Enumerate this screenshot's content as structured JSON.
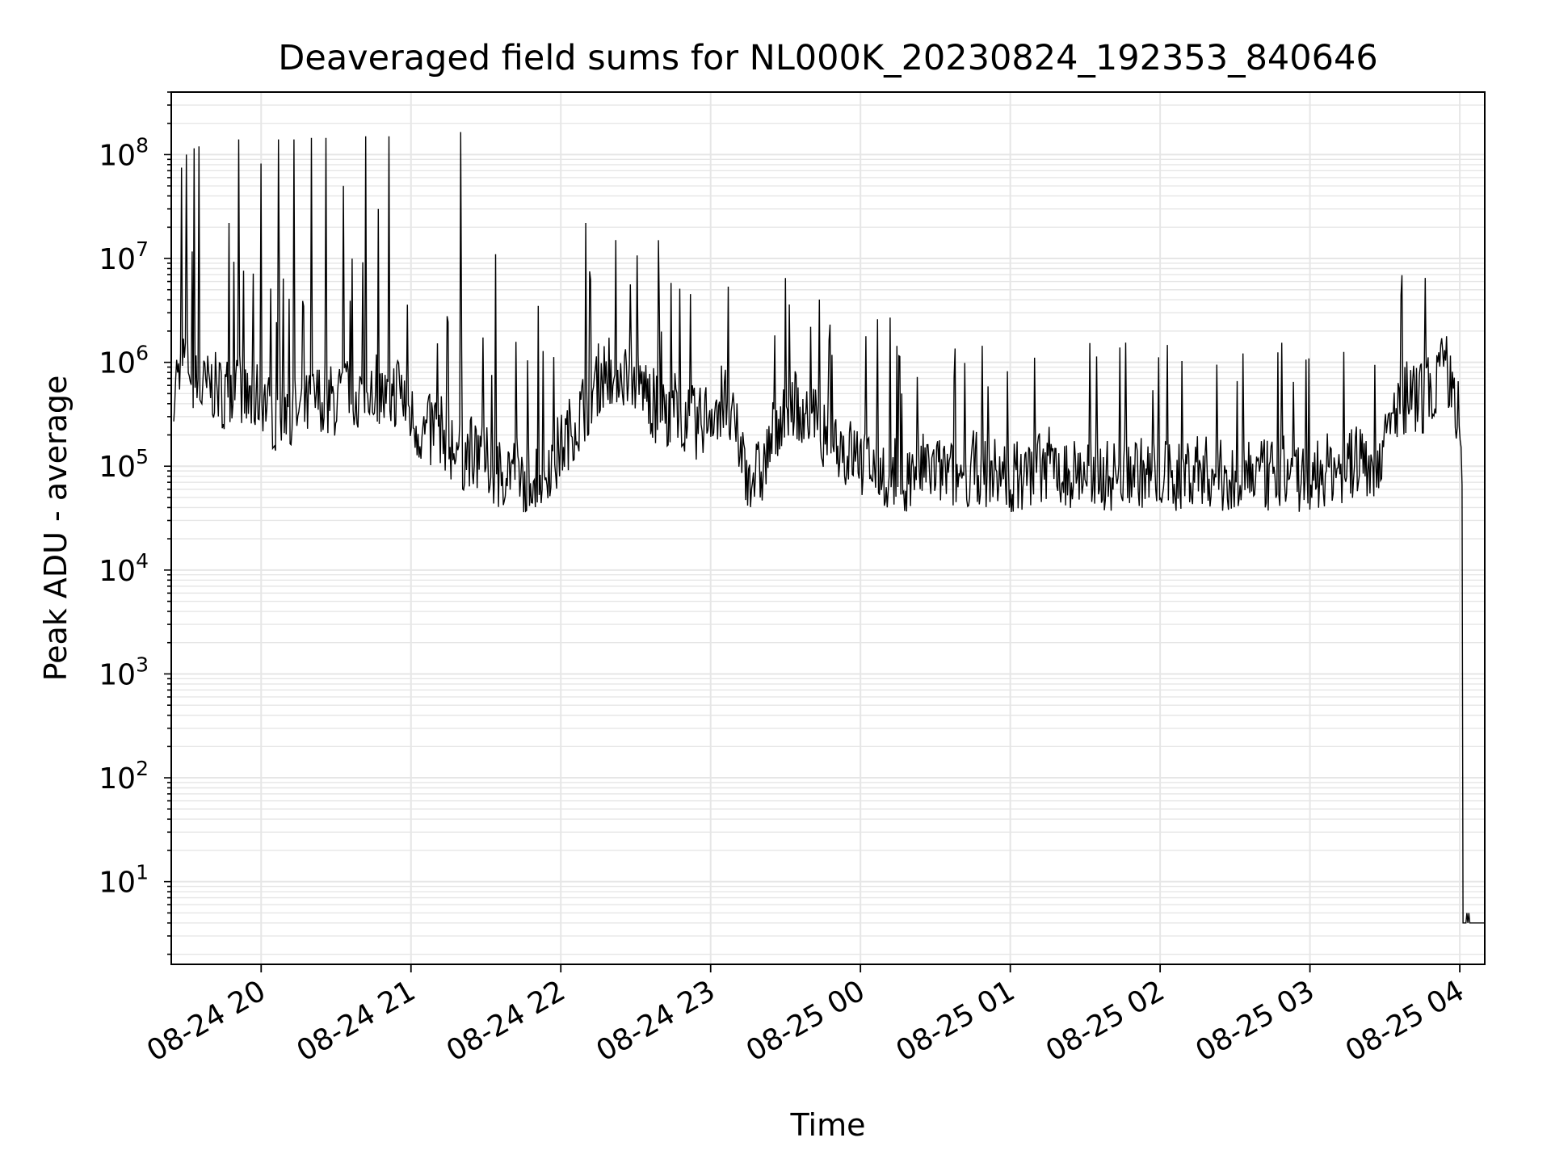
{
  "chart_data": {
    "type": "line",
    "title": "Deaveraged field sums for NL000K_20230824_192353_840646",
    "xlabel": "Time",
    "ylabel": "Peak ADU - average",
    "yscale": "log",
    "ylim": [
      1.6,
      400000000
    ],
    "xlim": [
      "2023-08-24 19:24",
      "2023-08-25 04:10"
    ],
    "grid": true,
    "line_color": "#000000",
    "grid_color": "#e6e6e6",
    "x_ticks": [
      {
        "t": "2023-08-24 20:00",
        "label": "08-24 20"
      },
      {
        "t": "2023-08-24 21:00",
        "label": "08-24 21"
      },
      {
        "t": "2023-08-24 22:00",
        "label": "08-24 22"
      },
      {
        "t": "2023-08-24 23:00",
        "label": "08-24 23"
      },
      {
        "t": "2023-08-25 00:00",
        "label": "08-25 00"
      },
      {
        "t": "2023-08-25 01:00",
        "label": "08-25 01"
      },
      {
        "t": "2023-08-25 02:00",
        "label": "08-25 02"
      },
      {
        "t": "2023-08-25 03:00",
        "label": "08-25 03"
      },
      {
        "t": "2023-08-25 04:00",
        "label": "08-25 04"
      }
    ],
    "y_ticks": [
      {
        "value": 10,
        "base": "10",
        "exp": "1"
      },
      {
        "value": 100,
        "base": "10",
        "exp": "2"
      },
      {
        "value": 1000,
        "base": "10",
        "exp": "3"
      },
      {
        "value": 10000,
        "base": "10",
        "exp": "4"
      },
      {
        "value": 100000,
        "base": "10",
        "exp": "5"
      },
      {
        "value": 1000000,
        "base": "10",
        "exp": "6"
      },
      {
        "value": 10000000,
        "base": "10",
        "exp": "7"
      },
      {
        "value": 100000000,
        "base": "10",
        "exp": "8"
      }
    ],
    "series": [
      {
        "x": [
          "2023-08-24 19:25",
          "2023-08-24 19:30",
          "2023-08-24 19:35",
          "2023-08-24 19:40",
          "2023-08-24 19:45",
          "2023-08-24 19:50",
          "2023-08-24 19:55",
          "2023-08-24 20:00",
          "2023-08-24 20:05",
          "2023-08-24 20:10",
          "2023-08-24 20:15",
          "2023-08-24 20:20",
          "2023-08-24 20:25",
          "2023-08-24 20:30",
          "2023-08-24 20:35",
          "2023-08-24 20:40",
          "2023-08-24 20:45",
          "2023-08-24 20:50",
          "2023-08-24 20:55",
          "2023-08-24 21:00",
          "2023-08-24 21:05",
          "2023-08-24 21:10",
          "2023-08-24 21:15",
          "2023-08-24 21:20",
          "2023-08-24 21:25",
          "2023-08-24 21:30",
          "2023-08-24 21:35",
          "2023-08-24 21:40",
          "2023-08-24 21:45",
          "2023-08-24 21:50",
          "2023-08-24 21:55",
          "2023-08-24 22:00",
          "2023-08-24 22:05",
          "2023-08-24 22:10",
          "2023-08-24 22:15",
          "2023-08-24 22:20",
          "2023-08-24 22:25",
          "2023-08-24 22:30",
          "2023-08-24 22:35",
          "2023-08-24 22:40",
          "2023-08-24 22:45",
          "2023-08-24 22:50",
          "2023-08-24 22:55",
          "2023-08-24 23:00",
          "2023-08-24 23:05",
          "2023-08-24 23:10",
          "2023-08-24 23:15",
          "2023-08-24 23:20",
          "2023-08-24 23:25",
          "2023-08-24 23:30",
          "2023-08-24 23:35",
          "2023-08-24 23:40",
          "2023-08-24 23:45",
          "2023-08-24 23:50",
          "2023-08-24 23:55",
          "2023-08-25 00:00",
          "2023-08-25 00:05",
          "2023-08-25 00:10",
          "2023-08-25 00:15",
          "2023-08-25 00:20",
          "2023-08-25 00:25",
          "2023-08-25 00:30",
          "2023-08-25 00:35",
          "2023-08-25 00:40",
          "2023-08-25 00:45",
          "2023-08-25 00:50",
          "2023-08-25 00:55",
          "2023-08-25 01:00",
          "2023-08-25 01:05",
          "2023-08-25 01:10",
          "2023-08-25 01:15",
          "2023-08-25 01:20",
          "2023-08-25 01:25",
          "2023-08-25 01:30",
          "2023-08-25 01:35",
          "2023-08-25 01:40",
          "2023-08-25 01:45",
          "2023-08-25 01:50",
          "2023-08-25 01:55",
          "2023-08-25 02:00",
          "2023-08-25 02:05",
          "2023-08-25 02:10",
          "2023-08-25 02:15",
          "2023-08-25 02:20",
          "2023-08-25 02:25",
          "2023-08-25 02:30",
          "2023-08-25 02:35",
          "2023-08-25 02:40",
          "2023-08-25 02:45",
          "2023-08-25 02:50",
          "2023-08-25 02:55",
          "2023-08-25 03:00",
          "2023-08-25 03:05",
          "2023-08-25 03:10",
          "2023-08-25 03:15",
          "2023-08-25 03:20",
          "2023-08-25 03:25",
          "2023-08-25 03:30",
          "2023-08-25 03:35",
          "2023-08-25 03:40",
          "2023-08-25 03:45",
          "2023-08-25 03:50",
          "2023-08-25 03:55",
          "2023-08-25 04:00",
          "2023-08-25 04:05",
          "2023-08-25 04:10"
        ],
        "y": [
          600000,
          1200000,
          500000,
          600000,
          500000,
          700000,
          400000,
          500000,
          300000,
          400000,
          300000,
          400000,
          500000,
          400000,
          600000,
          500000,
          700000,
          400000,
          600000,
          300000,
          200000,
          250000,
          180000,
          120000,
          150000,
          110000,
          90000,
          100000,
          80000,
          90000,
          110000,
          150000,
          250000,
          400000,
          700000,
          900000,
          800000,
          700000,
          500000,
          300000,
          400000,
          300000,
          250000,
          350000,
          450000,
          200000,
          90000,
          80000,
          200000,
          450000,
          400000,
          300000,
          220000,
          180000,
          140000,
          120000,
          100000,
          90000,
          85000,
          80000,
          95000,
          90000,
          85000,
          80000,
          100000,
          90000,
          85000,
          80000,
          85000,
          90000,
          110000,
          100000,
          85000,
          90000,
          85000,
          80000,
          90000,
          95000,
          80000,
          85000,
          80000,
          90000,
          100000,
          85000,
          80000,
          90000,
          95000,
          80000,
          85000,
          90000,
          80000,
          85000,
          90000,
          100000,
          95000,
          120000,
          110000,
          150000,
          400000,
          500000,
          450000,
          700000,
          900000,
          300000,
          4,
          4
        ],
        "spikes": [
          {
            "t": "2023-08-24 19:28",
            "y": 75000000
          },
          {
            "t": "2023-08-24 19:30",
            "y": 100000000
          },
          {
            "t": "2023-08-24 19:33",
            "y": 115000000
          },
          {
            "t": "2023-08-24 19:35",
            "y": 120000000
          },
          {
            "t": "2023-08-24 19:47",
            "y": 22000000
          },
          {
            "t": "2023-08-24 19:51",
            "y": 140000000
          },
          {
            "t": "2023-08-24 20:00",
            "y": 82000000
          },
          {
            "t": "2023-08-24 20:07",
            "y": 140000000
          },
          {
            "t": "2023-08-24 20:13",
            "y": 140000000
          },
          {
            "t": "2023-08-24 20:20",
            "y": 145000000
          },
          {
            "t": "2023-08-24 20:26",
            "y": 145000000
          },
          {
            "t": "2023-08-24 20:33",
            "y": 50000000
          },
          {
            "t": "2023-08-24 20:42",
            "y": 150000000
          },
          {
            "t": "2023-08-24 20:47",
            "y": 30000000
          },
          {
            "t": "2023-08-24 20:51",
            "y": 150000000
          },
          {
            "t": "2023-08-24 21:20",
            "y": 165000000
          },
          {
            "t": "2023-08-24 21:34",
            "y": 11000000
          },
          {
            "t": "2023-08-24 21:51",
            "y": 3500000
          },
          {
            "t": "2023-08-24 22:10",
            "y": 22000000
          },
          {
            "t": "2023-08-24 22:39",
            "y": 15000000
          },
          {
            "t": "2023-08-25 00:07",
            "y": 2600000
          },
          {
            "t": "2023-08-25 00:12",
            "y": 2700000
          },
          {
            "t": "2023-08-25 03:46",
            "y": 6500000
          }
        ]
      }
    ]
  }
}
